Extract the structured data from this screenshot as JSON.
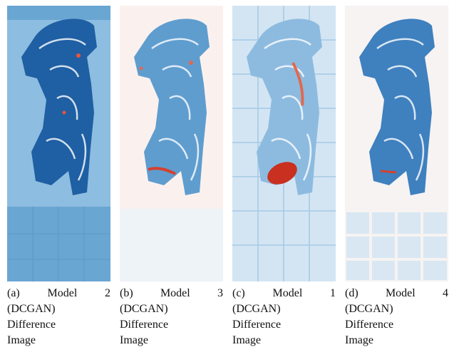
{
  "figure": {
    "panels": [
      {
        "caption_lines": [
          "(a) Model 2",
          "(DCGAN)",
          "Difference",
          "Image"
        ]
      },
      {
        "caption_lines": [
          "(b) Model 3",
          "(DCGAN)",
          "Difference",
          "Image"
        ]
      },
      {
        "caption_lines": [
          "(c) Model 1",
          "(DCGAN)",
          "Difference",
          "Image"
        ]
      },
      {
        "caption_lines": [
          "(d) Model 4",
          "(DCGAN)",
          "Difference",
          "Image"
        ]
      }
    ]
  }
}
